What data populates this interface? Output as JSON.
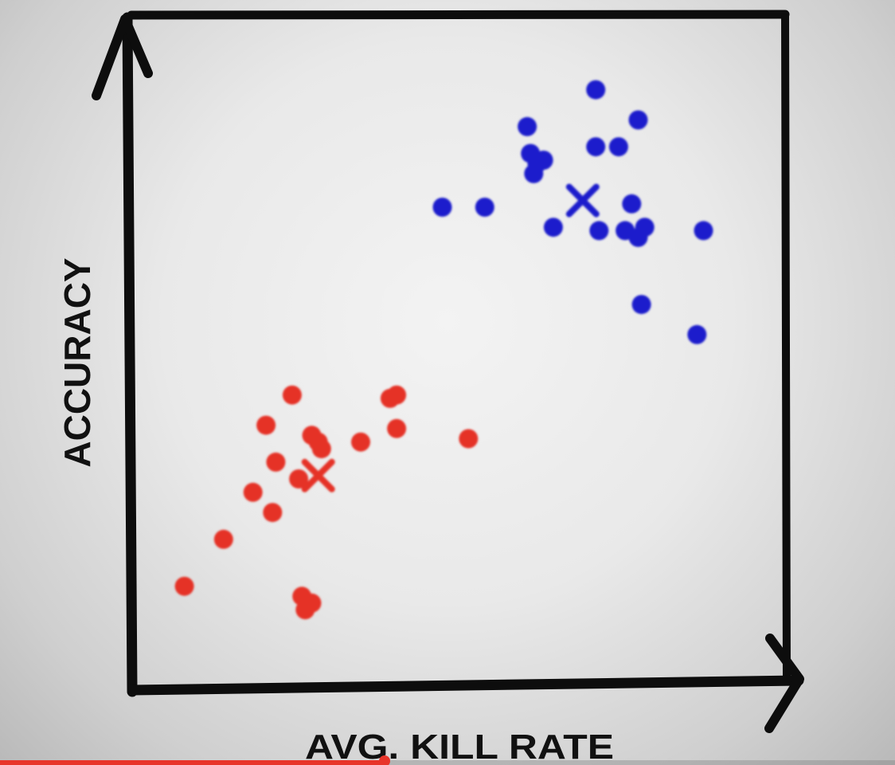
{
  "chart_data": {
    "type": "scatter",
    "title": "",
    "xlabel": "AVG. KILL RATE",
    "ylabel": "ACCURACY",
    "xlim": [
      0,
      100
    ],
    "ylim": [
      0,
      100
    ],
    "grid": false,
    "legend": "none",
    "series": [
      {
        "color": "#e53228",
        "points": [
          [
            8,
            15
          ],
          [
            14,
            22
          ],
          [
            18.5,
            29
          ],
          [
            21.5,
            26
          ],
          [
            22,
            33.5
          ],
          [
            26,
            13.5
          ],
          [
            26.5,
            11.5
          ],
          [
            27.5,
            12.5
          ],
          [
            25.5,
            31
          ],
          [
            20.5,
            39
          ],
          [
            24.5,
            43.5
          ],
          [
            27.5,
            37.5
          ],
          [
            28.5,
            36.5
          ],
          [
            29,
            35.5
          ],
          [
            35,
            36.5
          ],
          [
            39.5,
            43
          ],
          [
            40.5,
            43.5
          ],
          [
            40.5,
            38.5
          ],
          [
            51.5,
            37
          ]
        ],
        "centroid": [
          28.5,
          31.5
        ]
      },
      {
        "color": "#1a1fcc",
        "points": [
          [
            47.5,
            71.5
          ],
          [
            54,
            71.5
          ],
          [
            60.5,
            83.5
          ],
          [
            61,
            79.5
          ],
          [
            61.5,
            76.5
          ],
          [
            62,
            78
          ],
          [
            63,
            78.5
          ],
          [
            64.5,
            68.5
          ],
          [
            71,
            89
          ],
          [
            71,
            80.5
          ],
          [
            71.5,
            68
          ],
          [
            74.5,
            80.5
          ],
          [
            75.5,
            68
          ],
          [
            76.5,
            72
          ],
          [
            77.5,
            84.5
          ],
          [
            77.5,
            67
          ],
          [
            78.5,
            68.5
          ],
          [
            78,
            57
          ],
          [
            87.5,
            68
          ],
          [
            86.5,
            52.5
          ]
        ],
        "centroid": [
          69,
          72.5
        ]
      }
    ],
    "video_progress": 0.43
  }
}
